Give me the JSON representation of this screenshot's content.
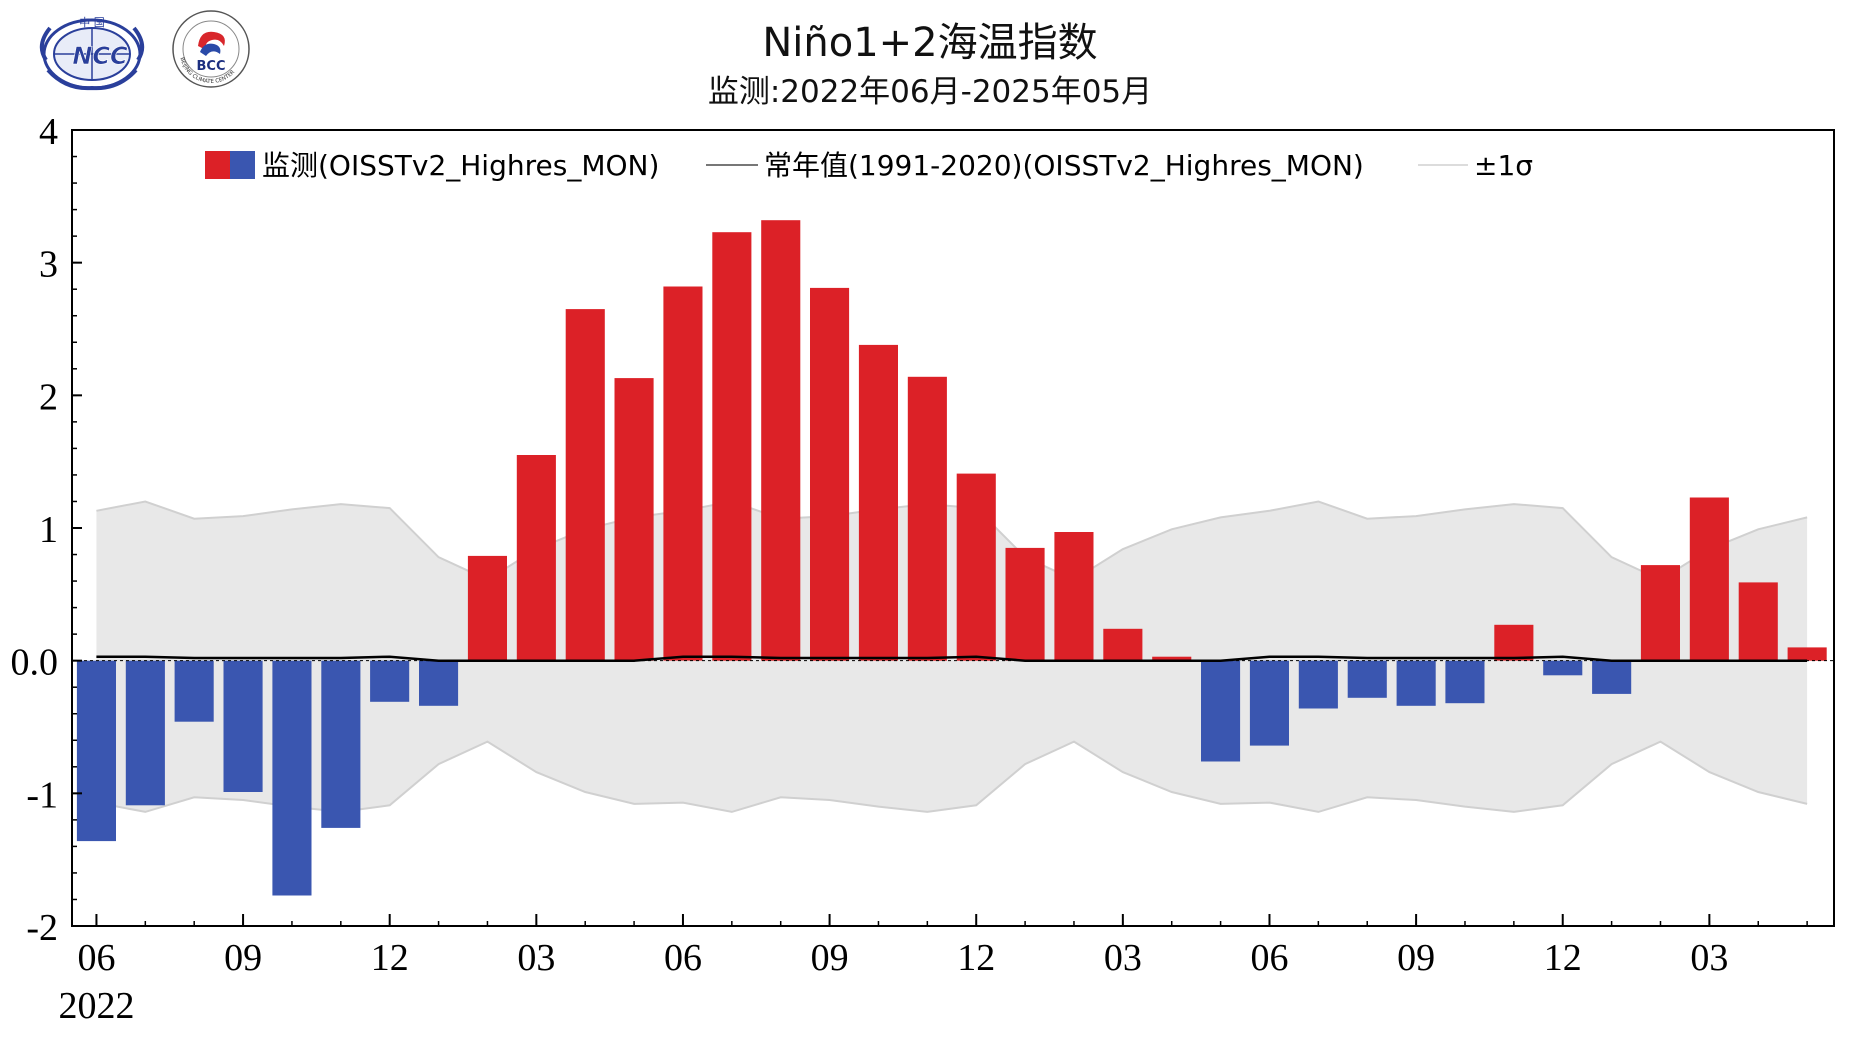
{
  "header": {
    "title": "Niño1+2海温指数",
    "subtitle": "监测:2022年06月-2025年05月",
    "logos": [
      {
        "name": "ncc-logo",
        "text": "NCC",
        "top_text": "中 国"
      },
      {
        "name": "bcc-logo",
        "text": "BCC",
        "ring_text": "BEIJING CLIMATE CENTER"
      }
    ]
  },
  "colors": {
    "positive": "#dc2127",
    "negative": "#3a56b0",
    "normal_line": "#000000",
    "band_fill": "#e8e8e8",
    "band_edge": "#d0d0d0"
  },
  "chart_data": {
    "type": "bar",
    "title": "Niño1+2海温指数",
    "subtitle": "监测:2022年06月-2025年05月",
    "xlabel": "",
    "ylabel": "",
    "ylim": [
      -2,
      4
    ],
    "yticks": [
      "4",
      "3",
      "2",
      "1",
      "0.0",
      "-1",
      "-2"
    ],
    "ytick_values": [
      4,
      3,
      2,
      1,
      0,
      -1,
      -2
    ],
    "xtick_labels": [
      "06",
      "09",
      "12",
      "03",
      "06",
      "09",
      "12",
      "03",
      "06",
      "09",
      "12",
      "03"
    ],
    "xtick_months": [
      "2022-06",
      "2022-09",
      "2022-12",
      "2023-03",
      "2023-06",
      "2023-09",
      "2023-12",
      "2024-03",
      "2024-06",
      "2024-09",
      "2024-12",
      "2025-03"
    ],
    "year_label": "2022",
    "legend": {
      "placement": "top",
      "entries": [
        "监测(OISSTv2_Highres_MON)",
        "常年值(1991-2020)(OISSTv2_Highres_MON)",
        "±1σ"
      ]
    },
    "x": [
      "2022-06",
      "2022-07",
      "2022-08",
      "2022-09",
      "2022-10",
      "2022-11",
      "2022-12",
      "2023-01",
      "2023-02",
      "2023-03",
      "2023-04",
      "2023-05",
      "2023-06",
      "2023-07",
      "2023-08",
      "2023-09",
      "2023-10",
      "2023-11",
      "2023-12",
      "2024-01",
      "2024-02",
      "2024-03",
      "2024-04",
      "2024-05",
      "2024-06",
      "2024-07",
      "2024-08",
      "2024-09",
      "2024-10",
      "2024-11",
      "2024-12",
      "2025-01",
      "2025-02",
      "2025-03",
      "2025-04",
      "2025-05"
    ],
    "series": [
      {
        "name": "监测(OISSTv2_Highres_MON)",
        "values": [
          -1.36,
          -1.09,
          -0.46,
          -0.99,
          -1.77,
          -1.26,
          -0.31,
          -0.34,
          0.79,
          1.55,
          2.65,
          2.13,
          2.82,
          3.23,
          3.32,
          2.81,
          2.38,
          2.14,
          1.41,
          0.85,
          0.97,
          0.24,
          0.03,
          -0.76,
          -0.64,
          -0.36,
          -0.28,
          -0.34,
          -0.32,
          0.27,
          -0.11,
          -0.25,
          0.72,
          1.23,
          0.59,
          0.1
        ]
      },
      {
        "name": "常年值(1991-2020)(OISSTv2_Highres_MON)",
        "values": [
          0.03,
          0.03,
          0.02,
          0.02,
          0.02,
          0.02,
          0.03,
          0.0,
          0.0,
          0.0,
          0.0,
          0.0,
          0.03,
          0.03,
          0.02,
          0.02,
          0.02,
          0.02,
          0.03,
          0.0,
          0.0,
          0.0,
          0.0,
          0.0,
          0.03,
          0.03,
          0.02,
          0.02,
          0.02,
          0.02,
          0.03,
          0.0,
          0.0,
          0.0,
          0.0,
          0.0
        ]
      },
      {
        "name": "±1σ",
        "values": [
          1.1,
          1.17,
          1.05,
          1.07,
          1.12,
          1.16,
          1.12,
          0.78,
          0.61,
          0.84,
          0.99,
          1.08,
          1.1,
          1.17,
          1.05,
          1.07,
          1.12,
          1.16,
          1.12,
          0.78,
          0.61,
          0.84,
          0.99,
          1.08,
          1.1,
          1.17,
          1.05,
          1.07,
          1.12,
          1.16,
          1.12,
          0.78,
          0.61,
          0.84,
          0.99,
          1.08
        ]
      }
    ],
    "grid": false
  }
}
